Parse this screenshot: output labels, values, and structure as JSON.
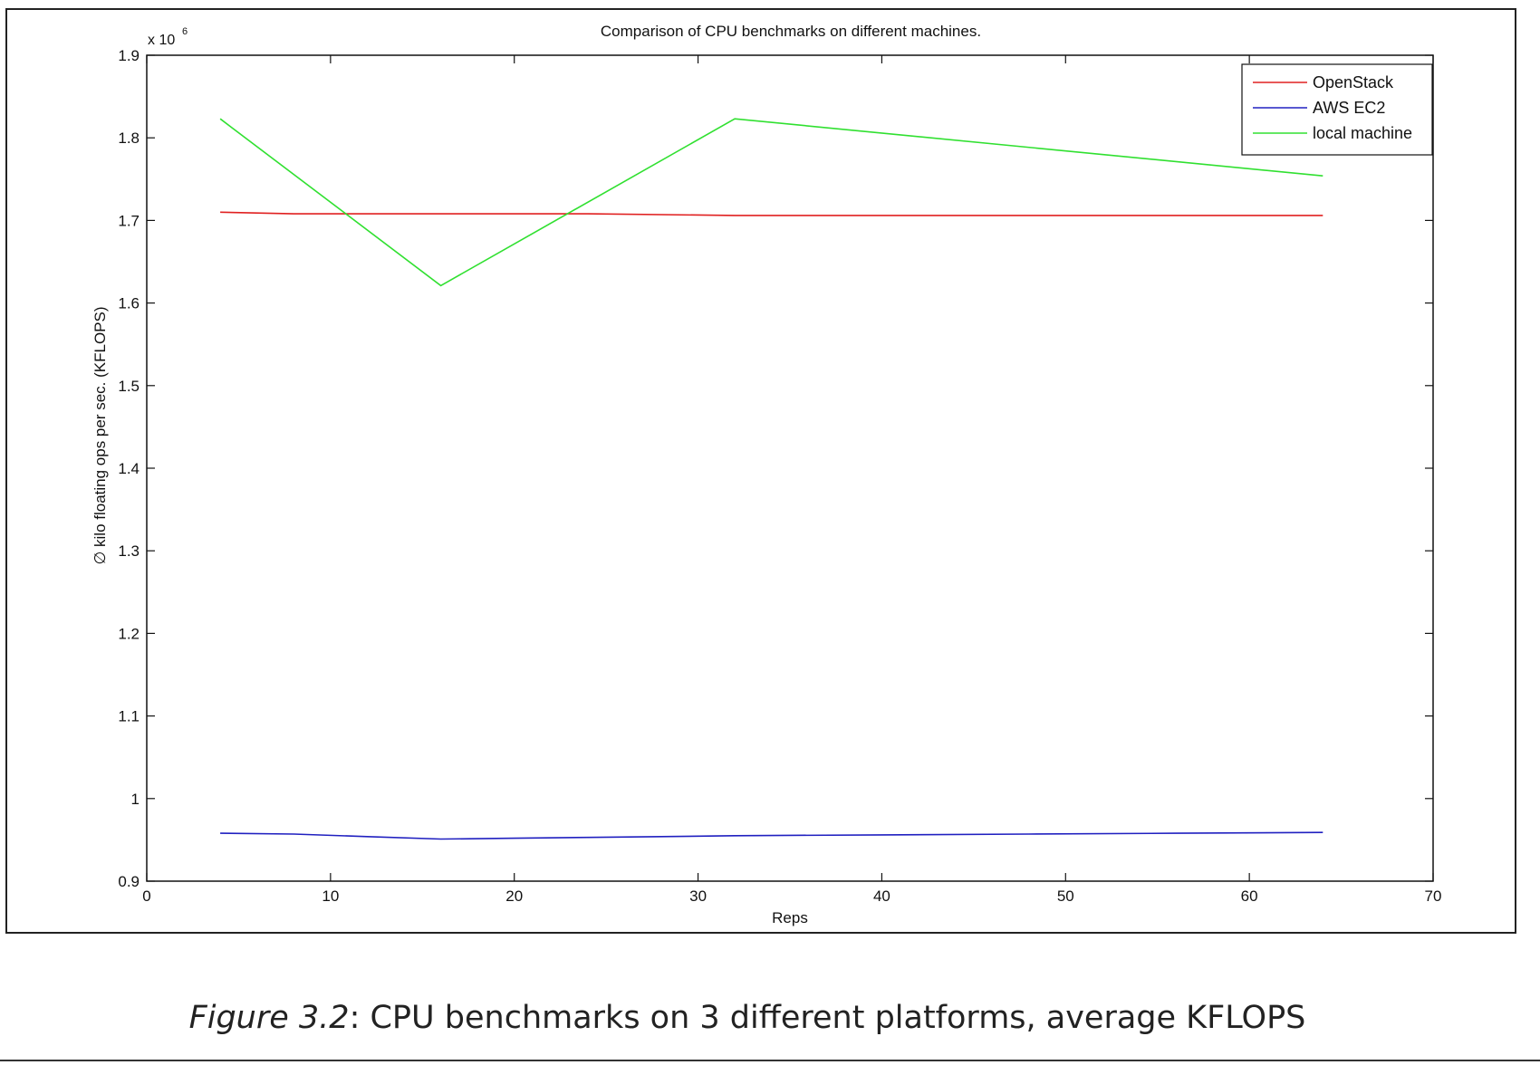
{
  "chart_data": {
    "type": "line",
    "title": "Comparison of CPU benchmarks on different machines.",
    "xlabel": "Reps",
    "ylabel": "∅ kilo floating ops per sec. (KFLOPS)",
    "xlim": [
      0,
      70
    ],
    "ylim": [
      0.9,
      1.9
    ],
    "y_multiplier": "x 10",
    "y_multiplier_exp": "6",
    "x_ticks": [
      0,
      10,
      20,
      30,
      40,
      50,
      60,
      70
    ],
    "y_ticks": [
      0.9,
      1,
      1.1,
      1.2,
      1.3,
      1.4,
      1.5,
      1.6,
      1.7,
      1.8,
      1.9
    ],
    "y_tick_labels": [
      "0.9",
      "1",
      "1.1",
      "1.2",
      "1.3",
      "1.4",
      "1.5",
      "1.6",
      "1.7",
      "1.8",
      "1.9"
    ],
    "grid": false,
    "legend_position": "top-right",
    "series": [
      {
        "name": "OpenStack",
        "color": "#e02020",
        "x": [
          4,
          8,
          16,
          24,
          32,
          40,
          48,
          56,
          64
        ],
        "y": [
          1.71,
          1.708,
          1.708,
          1.708,
          1.706,
          1.706,
          1.706,
          1.706,
          1.706
        ]
      },
      {
        "name": "AWS EC2",
        "color": "#2020c0",
        "x": [
          4,
          8,
          12,
          16,
          20,
          24,
          28,
          32,
          40,
          48,
          56,
          64
        ],
        "y": [
          0.958,
          0.957,
          0.954,
          0.951,
          0.952,
          0.953,
          0.954,
          0.955,
          0.956,
          0.957,
          0.958,
          0.959
        ]
      },
      {
        "name": "local machine",
        "color": "#30e030",
        "x": [
          4,
          16,
          32,
          64
        ],
        "y": [
          1.823,
          1.621,
          1.823,
          1.754
        ]
      }
    ]
  },
  "caption": {
    "figure_label": "Figure 3.2",
    "text": ": CPU benchmarks on 3 different platforms, average KFLOPS"
  }
}
